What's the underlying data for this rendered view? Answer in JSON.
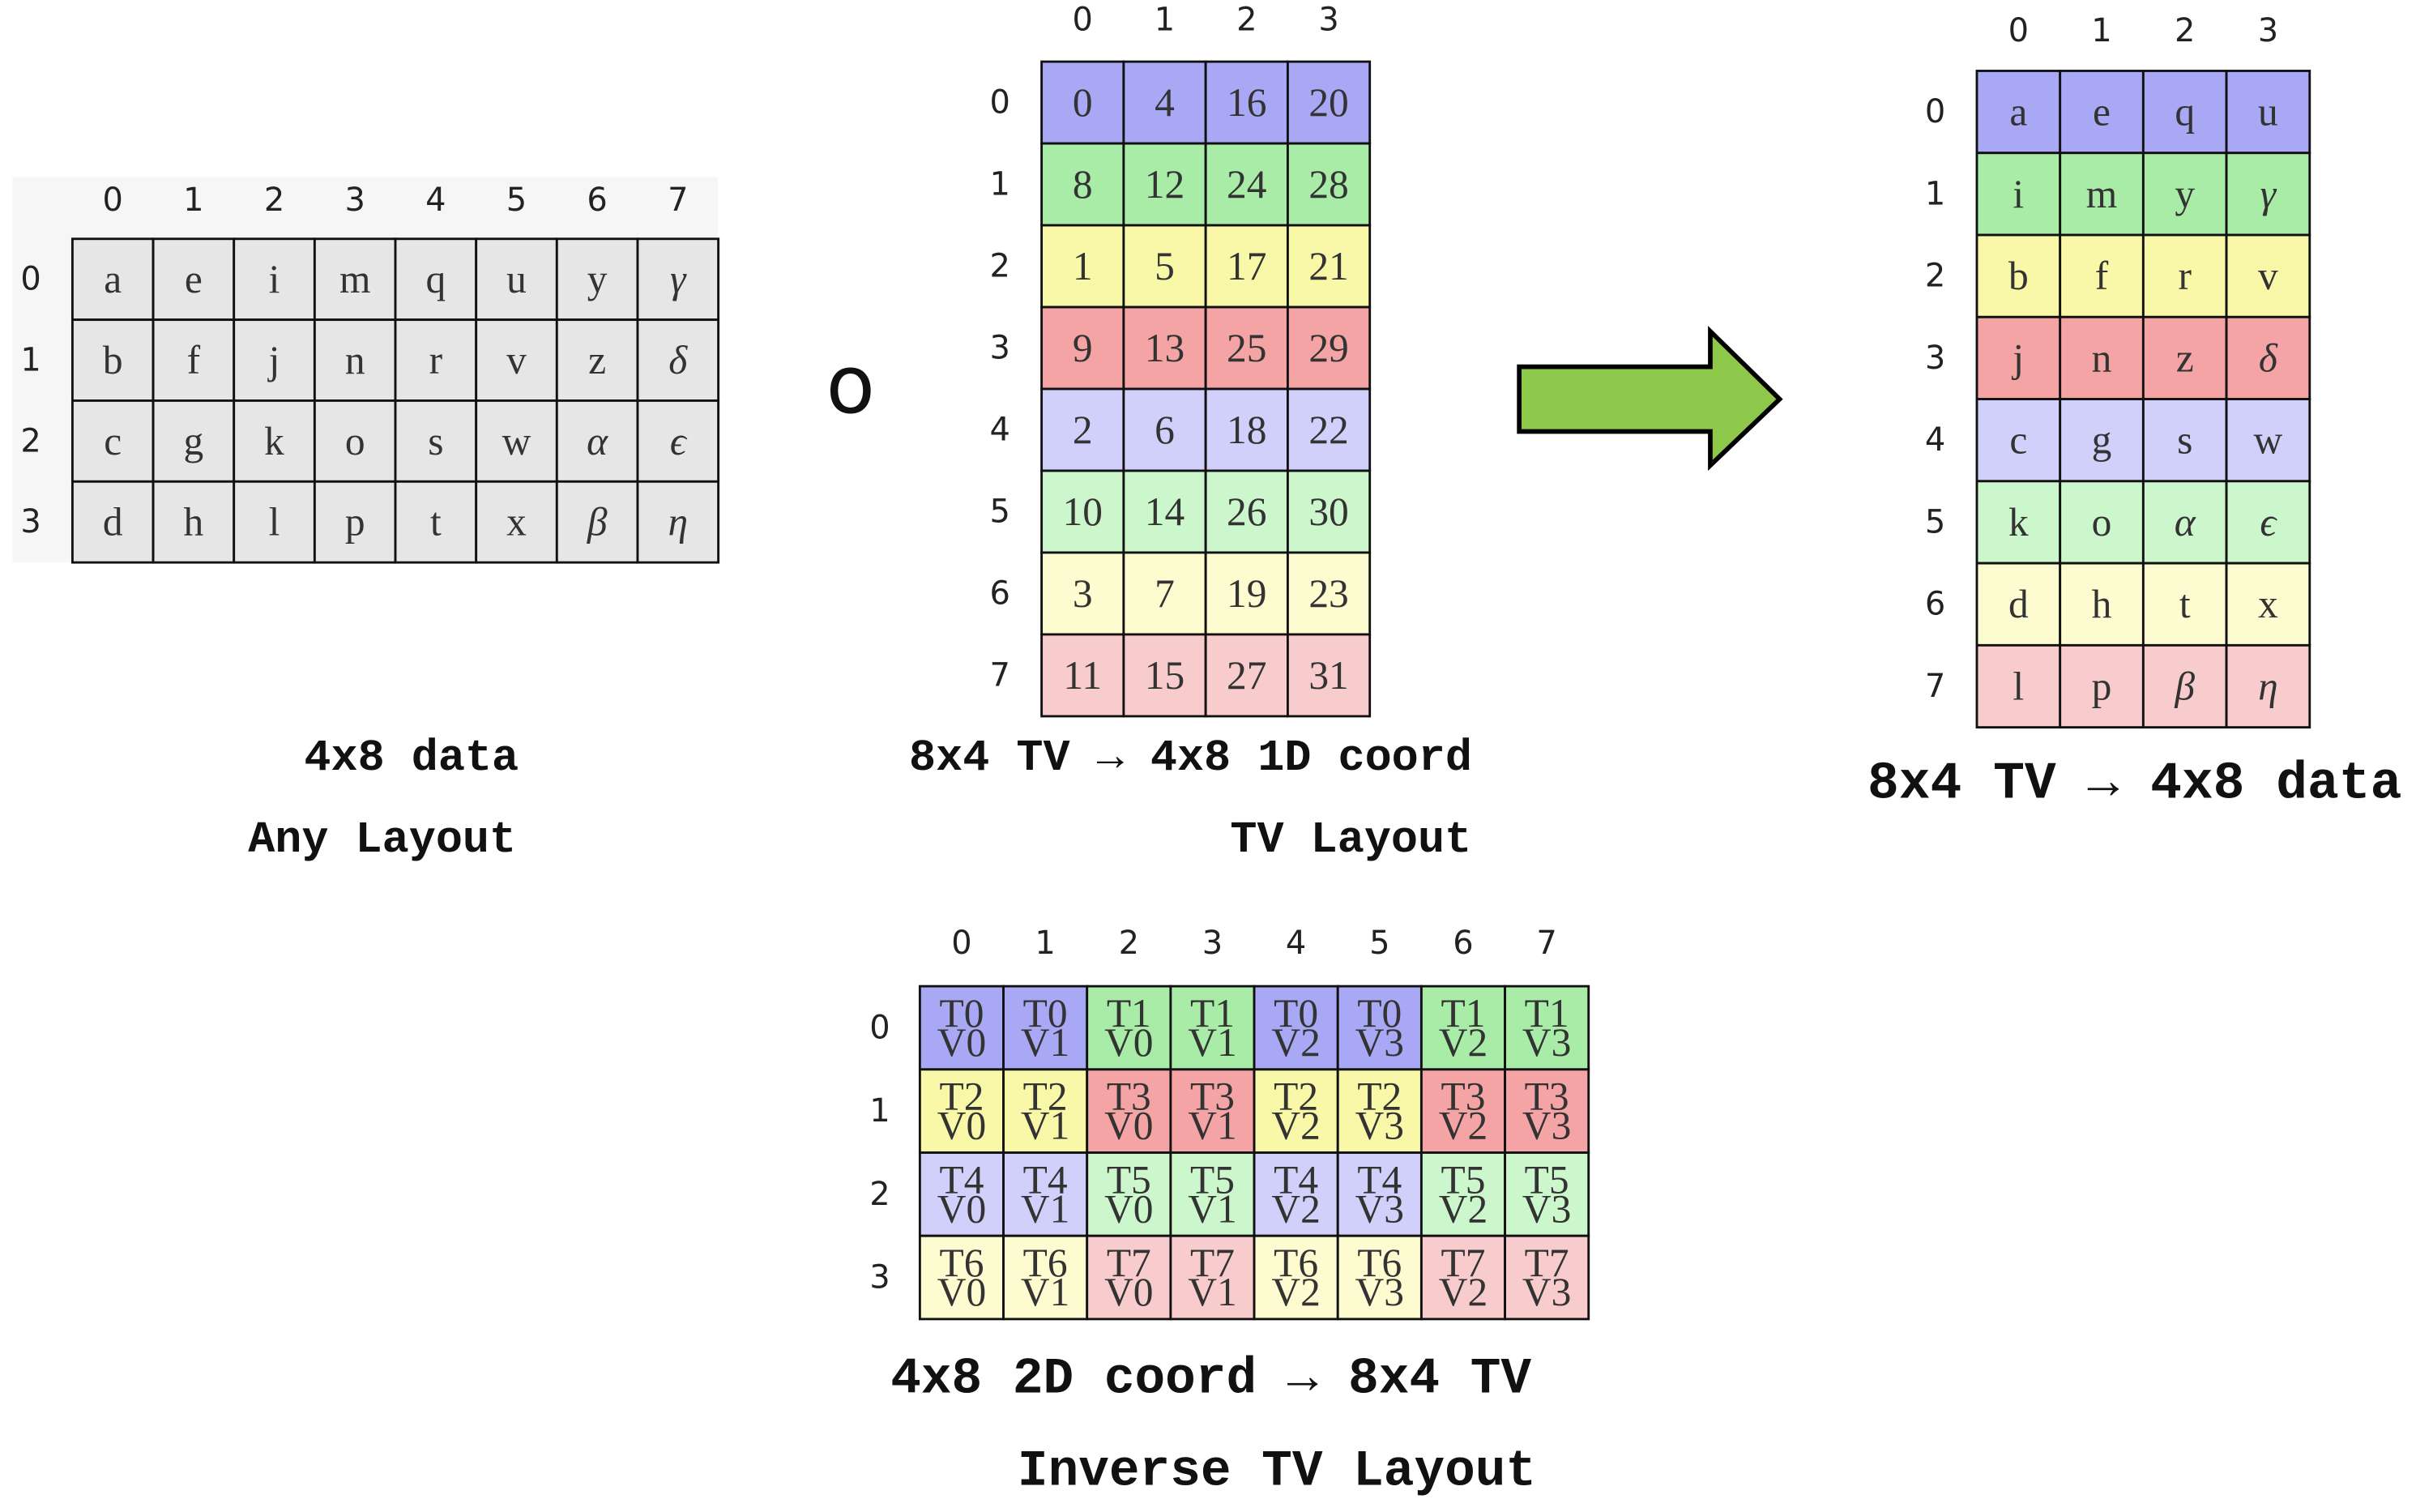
{
  "data_grid": {
    "col_headers": [
      0,
      1,
      2,
      3,
      4,
      5,
      6,
      7
    ],
    "row_headers": [
      0,
      1,
      2,
      3
    ],
    "cells": [
      [
        "a",
        "e",
        "i",
        "m",
        "q",
        "u",
        "y",
        "γ"
      ],
      [
        "b",
        "f",
        "j",
        "n",
        "r",
        "v",
        "z",
        "δ"
      ],
      [
        "c",
        "g",
        "k",
        "o",
        "s",
        "w",
        "α",
        "ϵ"
      ],
      [
        "d",
        "h",
        "l",
        "p",
        "t",
        "x",
        "β",
        "η"
      ]
    ],
    "caption_1": "4x8 data",
    "caption_2": "Any Layout"
  },
  "operator": "o",
  "tv_grid": {
    "col_headers": [
      0,
      1,
      2,
      3
    ],
    "row_headers": [
      0,
      1,
      2,
      3,
      4,
      5,
      6,
      7
    ],
    "cells": [
      [
        0,
        4,
        16,
        20
      ],
      [
        8,
        12,
        24,
        28
      ],
      [
        1,
        5,
        17,
        21
      ],
      [
        9,
        13,
        25,
        29
      ],
      [
        2,
        6,
        18,
        22
      ],
      [
        10,
        14,
        26,
        30
      ],
      [
        3,
        7,
        19,
        23
      ],
      [
        11,
        15,
        27,
        31
      ]
    ],
    "caption_1": "8x4 TV → 4x8 1D coord",
    "caption_2": "TV Layout"
  },
  "result_grid": {
    "col_headers": [
      0,
      1,
      2,
      3
    ],
    "row_headers": [
      0,
      1,
      2,
      3,
      4,
      5,
      6,
      7
    ],
    "cells": [
      [
        "a",
        "e",
        "q",
        "u"
      ],
      [
        "i",
        "m",
        "y",
        "γ"
      ],
      [
        "b",
        "f",
        "r",
        "v"
      ],
      [
        "j",
        "n",
        "z",
        "δ"
      ],
      [
        "c",
        "g",
        "s",
        "w"
      ],
      [
        "k",
        "o",
        "α",
        "ϵ"
      ],
      [
        "d",
        "h",
        "t",
        "x"
      ],
      [
        "l",
        "p",
        "β",
        "η"
      ]
    ],
    "caption_1": "8x4 TV → 4x8 data"
  },
  "inverse_grid": {
    "col_headers": [
      0,
      1,
      2,
      3,
      4,
      5,
      6,
      7
    ],
    "row_headers": [
      0,
      1,
      2,
      3
    ],
    "cells": [
      [
        [
          "T0",
          "V0"
        ],
        [
          "T0",
          "V1"
        ],
        [
          "T1",
          "V0"
        ],
        [
          "T1",
          "V1"
        ],
        [
          "T0",
          "V2"
        ],
        [
          "T0",
          "V3"
        ],
        [
          "T1",
          "V2"
        ],
        [
          "T1",
          "V3"
        ]
      ],
      [
        [
          "T2",
          "V0"
        ],
        [
          "T2",
          "V1"
        ],
        [
          "T3",
          "V0"
        ],
        [
          "T3",
          "V1"
        ],
        [
          "T2",
          "V2"
        ],
        [
          "T2",
          "V3"
        ],
        [
          "T3",
          "V2"
        ],
        [
          "T3",
          "V3"
        ]
      ],
      [
        [
          "T4",
          "V0"
        ],
        [
          "T4",
          "V1"
        ],
        [
          "T5",
          "V0"
        ],
        [
          "T5",
          "V1"
        ],
        [
          "T4",
          "V2"
        ],
        [
          "T4",
          "V3"
        ],
        [
          "T5",
          "V2"
        ],
        [
          "T5",
          "V3"
        ]
      ],
      [
        [
          "T6",
          "V0"
        ],
        [
          "T6",
          "V1"
        ],
        [
          "T7",
          "V0"
        ],
        [
          "T7",
          "V1"
        ],
        [
          "T6",
          "V2"
        ],
        [
          "T6",
          "V3"
        ],
        [
          "T7",
          "V2"
        ],
        [
          "T7",
          "V3"
        ]
      ]
    ],
    "caption_1": "4x8 2D coord → 8x4 TV",
    "caption_2": "Inverse TV Layout"
  }
}
